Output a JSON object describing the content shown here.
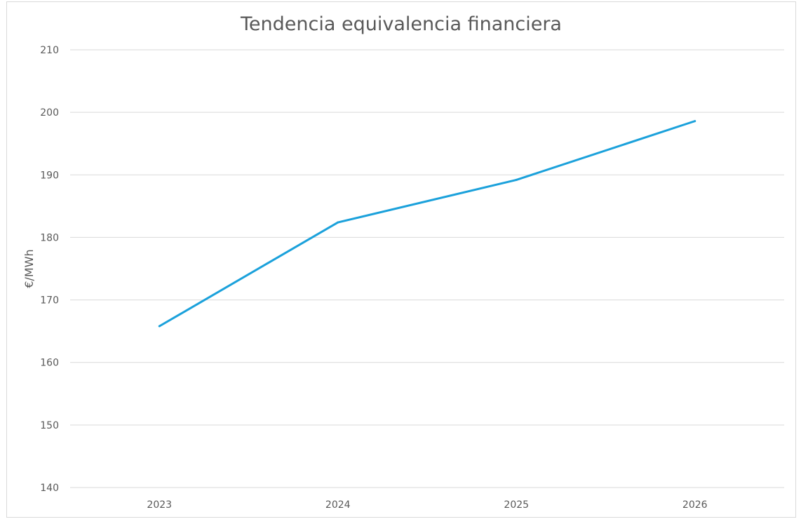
{
  "chart_data": {
    "type": "line",
    "title": "Tendencia equivalencia financiera",
    "xlabel": "",
    "ylabel": "€/MWh",
    "categories": [
      "2023",
      "2024",
      "2025",
      "2026"
    ],
    "series": [
      {
        "values": [
          165.8,
          182.4,
          189.2,
          198.6
        ],
        "color": "#1BA1DB"
      }
    ],
    "ylim": [
      140,
      210
    ],
    "yticks": [
      "140",
      "150",
      "160",
      "170",
      "180",
      "190",
      "200",
      "210"
    ],
    "grid": true,
    "legend": "none"
  }
}
